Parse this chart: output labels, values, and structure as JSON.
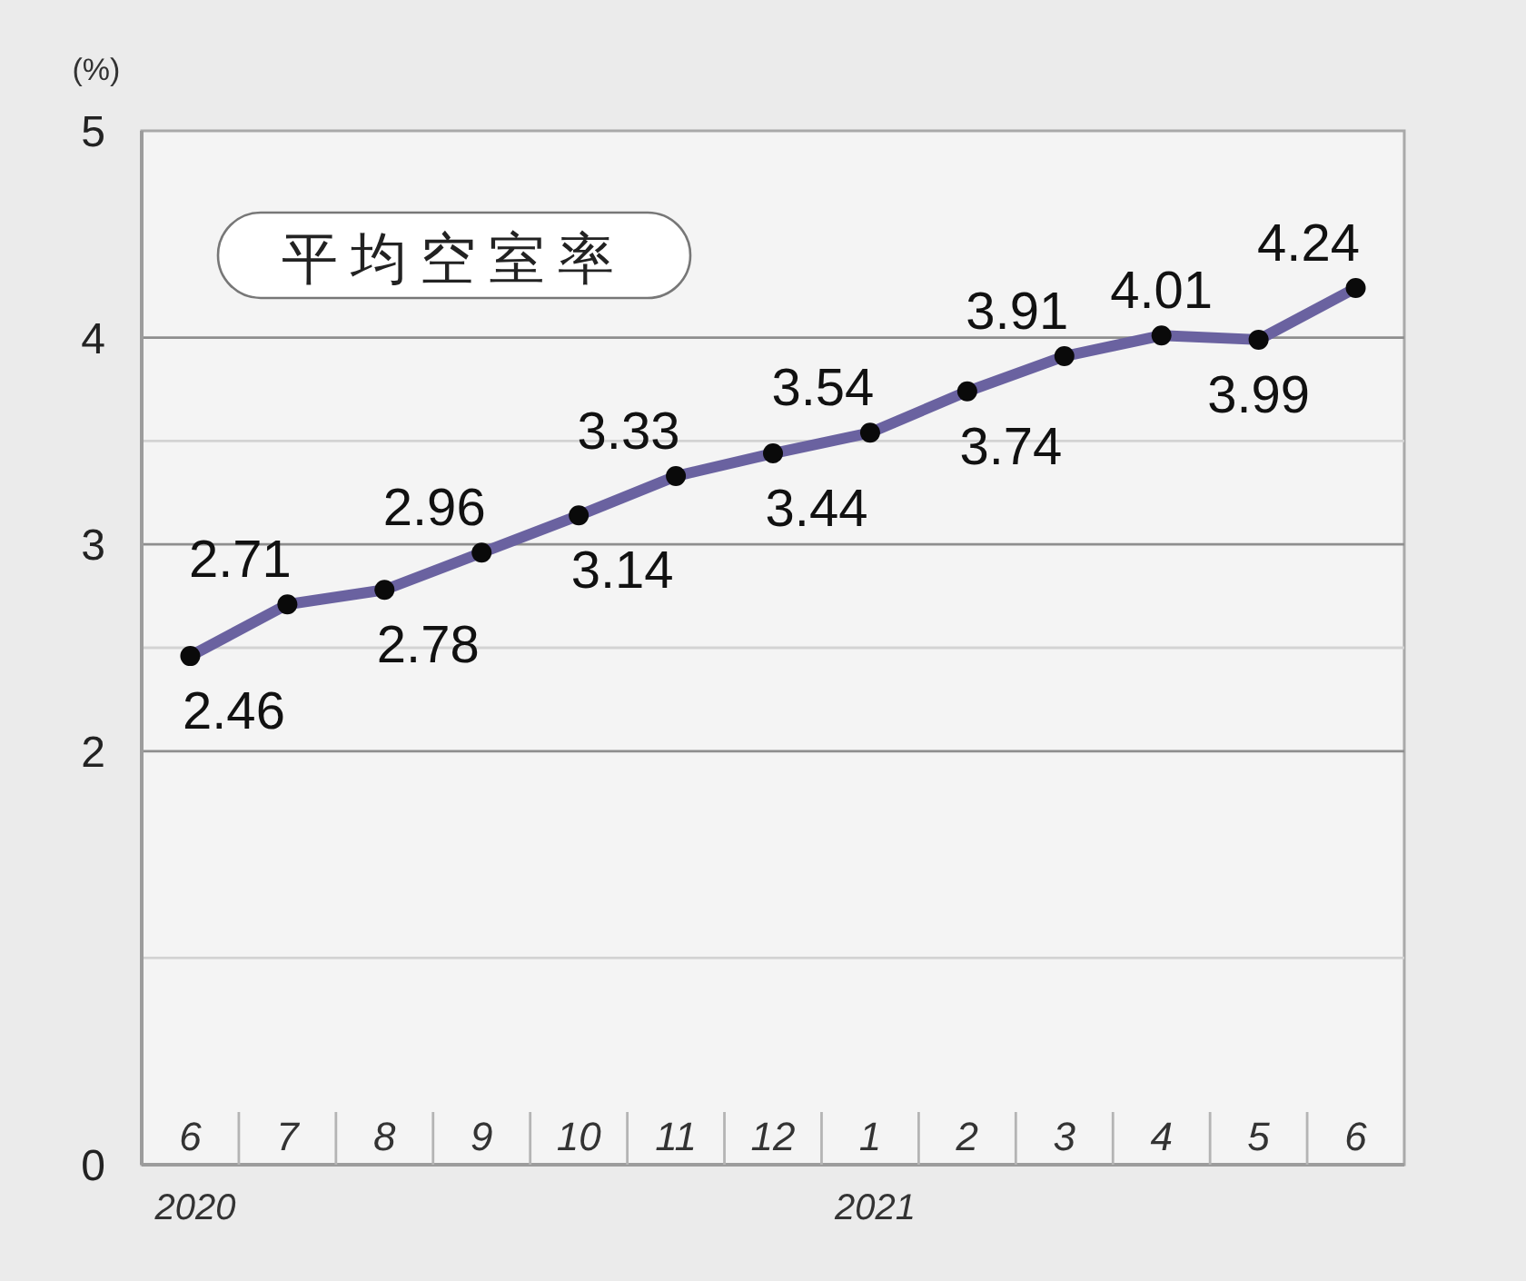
{
  "chart_data": {
    "type": "line",
    "title": "平均空室率",
    "ylabel": "(%)",
    "categories": [
      "6\n2020",
      "7",
      "8",
      "9",
      "10",
      "11",
      "12",
      "1\n2021",
      "2",
      "3",
      "4",
      "5",
      "6"
    ],
    "series": [
      {
        "color": "#6a62a0",
        "values": [
          2.46,
          2.71,
          2.78,
          2.96,
          3.14,
          3.33,
          3.44,
          3.54,
          3.74,
          3.91,
          4.01,
          3.99,
          4.24
        ]
      }
    ],
    "ylim": [
      0,
      5
    ],
    "yticks": [
      0,
      {
        "value": 1,
        "label": null
      },
      2,
      {
        "value": 2.5,
        "label": null
      },
      3,
      {
        "value": 3.5,
        "label": null
      },
      4,
      5
    ],
    "grid": "y",
    "marker": "circle",
    "line_style": "solid",
    "data_labels": true
  }
}
